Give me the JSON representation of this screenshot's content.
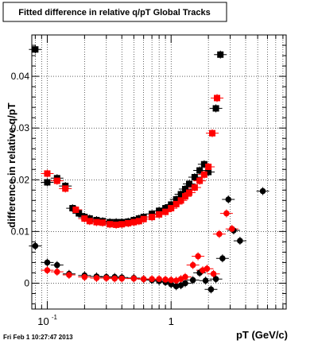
{
  "footer_text": "Fri Feb  1 10:27:47 2013",
  "chart_data": {
    "type": "scatter",
    "title": "Fitted difference in relative q/pT  Global Tracks",
    "xlabel": "pT (GeV/c)",
    "ylabel": "difference in relative q/pT",
    "x_scale": "log",
    "xlim": [
      0.075,
      8.5
    ],
    "ylim": [
      -0.005,
      0.048
    ],
    "x_tick_labels": [
      {
        "value": 0.1,
        "base": "10",
        "exp": "-1"
      },
      {
        "value": 1,
        "base": "1",
        "exp": ""
      }
    ],
    "y_ticks": [
      0,
      0.01,
      0.02,
      0.03,
      0.04
    ],
    "y_tick_labels": [
      "0",
      "0.01",
      "0.02",
      "0.03",
      "0.04"
    ],
    "grid": true,
    "colors": {
      "black_series": "#000000",
      "red_series": "#ff0000",
      "frame": "#000000"
    },
    "series": [
      {
        "marker": "square",
        "color": "#000000",
        "points": [
          [
            0.08,
            0.0452
          ],
          [
            0.1,
            0.0195
          ],
          [
            0.12,
            0.0203
          ],
          [
            0.14,
            0.0188
          ],
          [
            0.16,
            0.0145
          ],
          [
            0.18,
            0.0135
          ],
          [
            0.2,
            0.0128
          ],
          [
            0.22,
            0.0125
          ],
          [
            0.25,
            0.0122
          ],
          [
            0.28,
            0.012
          ],
          [
            0.32,
            0.0118
          ],
          [
            0.36,
            0.0118
          ],
          [
            0.4,
            0.0118
          ],
          [
            0.45,
            0.0119
          ],
          [
            0.5,
            0.0122
          ],
          [
            0.55,
            0.0125
          ],
          [
            0.6,
            0.0128
          ],
          [
            0.7,
            0.0134
          ],
          [
            0.8,
            0.014
          ],
          [
            0.9,
            0.0145
          ],
          [
            1.0,
            0.0152
          ],
          [
            1.1,
            0.0162
          ],
          [
            1.2,
            0.0172
          ],
          [
            1.3,
            0.0182
          ],
          [
            1.4,
            0.0192
          ],
          [
            1.55,
            0.0205
          ],
          [
            1.7,
            0.0218
          ],
          [
            1.85,
            0.023
          ],
          [
            2.0,
            0.0215
          ],
          [
            2.3,
            0.0338
          ],
          [
            2.5,
            0.0442
          ]
        ]
      },
      {
        "marker": "square",
        "color": "#ff0000",
        "points": [
          [
            0.1,
            0.0212
          ],
          [
            0.12,
            0.0198
          ],
          [
            0.14,
            0.0183
          ],
          [
            0.17,
            0.0142
          ],
          [
            0.2,
            0.0125
          ],
          [
            0.22,
            0.012
          ],
          [
            0.25,
            0.0118
          ],
          [
            0.28,
            0.0117
          ],
          [
            0.32,
            0.0114
          ],
          [
            0.36,
            0.0113
          ],
          [
            0.4,
            0.0114
          ],
          [
            0.45,
            0.0116
          ],
          [
            0.5,
            0.0118
          ],
          [
            0.55,
            0.012
          ],
          [
            0.6,
            0.0124
          ],
          [
            0.7,
            0.0128
          ],
          [
            0.8,
            0.0133
          ],
          [
            0.9,
            0.0138
          ],
          [
            1.0,
            0.0145
          ],
          [
            1.1,
            0.0153
          ],
          [
            1.2,
            0.016
          ],
          [
            1.3,
            0.0168
          ],
          [
            1.4,
            0.0175
          ],
          [
            1.55,
            0.0185
          ],
          [
            1.7,
            0.0198
          ],
          [
            1.85,
            0.021
          ],
          [
            2.0,
            0.0225
          ],
          [
            2.15,
            0.029
          ],
          [
            2.35,
            0.0358
          ]
        ]
      },
      {
        "marker": "circle",
        "color": "#000000",
        "points": [
          [
            0.08,
            0.0072
          ],
          [
            0.1,
            0.004
          ],
          [
            0.12,
            0.0035
          ],
          [
            0.15,
            0.0018
          ],
          [
            0.2,
            0.0015
          ],
          [
            0.25,
            0.0013
          ],
          [
            0.3,
            0.0012
          ],
          [
            0.35,
            0.0012
          ],
          [
            0.4,
            0.0011
          ],
          [
            0.5,
            0.001
          ],
          [
            0.6,
            0.0008
          ],
          [
            0.7,
            0.0006
          ],
          [
            0.8,
            0.0004
          ],
          [
            0.9,
            0.0002
          ],
          [
            1.0,
            -0.0002
          ],
          [
            1.1,
            -0.0006
          ],
          [
            1.2,
            -0.0004
          ],
          [
            1.3,
            0.0
          ],
          [
            1.5,
            0.0006
          ],
          [
            1.7,
            0.002
          ],
          [
            1.9,
            0.0005
          ],
          [
            2.1,
            -0.0012
          ],
          [
            2.3,
            0.0008
          ],
          [
            2.6,
            0.0048
          ],
          [
            2.9,
            0.0162
          ],
          [
            3.2,
            0.0102
          ],
          [
            3.6,
            0.0082
          ],
          [
            5.5,
            0.0178
          ]
        ]
      },
      {
        "marker": "circle",
        "color": "#ff0000",
        "points": [
          [
            0.1,
            0.0025
          ],
          [
            0.12,
            0.0022
          ],
          [
            0.15,
            0.0016
          ],
          [
            0.2,
            0.0012
          ],
          [
            0.25,
            0.001
          ],
          [
            0.3,
            0.001
          ],
          [
            0.35,
            0.0009
          ],
          [
            0.4,
            0.0009
          ],
          [
            0.5,
            0.0009
          ],
          [
            0.6,
            0.0008
          ],
          [
            0.7,
            0.0008
          ],
          [
            0.8,
            0.0008
          ],
          [
            0.9,
            0.0007
          ],
          [
            1.0,
            0.0006
          ],
          [
            1.1,
            0.0005
          ],
          [
            1.2,
            0.0008
          ],
          [
            1.3,
            0.0012
          ],
          [
            1.5,
            0.0035
          ],
          [
            1.65,
            0.0052
          ],
          [
            1.8,
            0.0025
          ],
          [
            1.95,
            0.0028
          ],
          [
            2.2,
            0.0018
          ],
          [
            2.45,
            0.0095
          ],
          [
            2.8,
            0.0135
          ],
          [
            3.1,
            0.0105
          ]
        ]
      }
    ]
  }
}
